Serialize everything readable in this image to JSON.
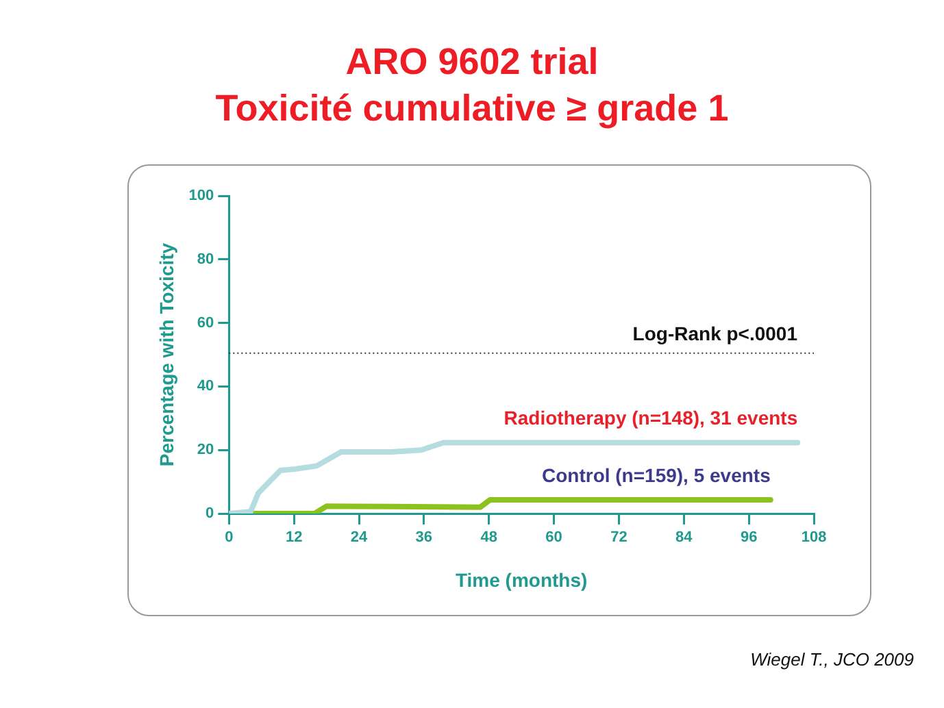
{
  "chart_data": {
    "type": "line",
    "title": "ARO 9602 trial\nToxicité cumulative ≥ grade 1",
    "xlabel": "Time (months)",
    "ylabel": "Percentage with Toxicity",
    "xlim": [
      0,
      108
    ],
    "xticks": [
      0,
      12,
      24,
      36,
      48,
      60,
      72,
      84,
      96,
      108
    ],
    "ylim": [
      0,
      100
    ],
    "yticks": [
      0,
      20,
      40,
      60,
      80,
      100
    ],
    "grid": false,
    "legend": false,
    "marker": "none",
    "line_style": "solid",
    "series": [
      {
        "name": "Radiotherapy (n=148), 31 events",
        "color": "#b5dde0",
        "x": [
          0,
          4,
          5.4,
          9.5,
          12.2,
          16.2,
          20.7,
          30,
          35.5,
          39.6,
          105
        ],
        "values": [
          0,
          0.6,
          6.4,
          13.6,
          14,
          15,
          19.4,
          19.4,
          20,
          22.3,
          22.3
        ]
      },
      {
        "name": "Control (n=159), 5 events",
        "color": "#8cc21e",
        "x": [
          4,
          15.8,
          18,
          30,
          46.4,
          48.2,
          100
        ],
        "values": [
          0,
          0,
          2.3,
          2.2,
          2,
          4.3,
          4.3
        ]
      }
    ],
    "ref_lines": [
      {
        "axis": "y",
        "value": 50.5,
        "label": "Log-Rank p<.0001",
        "line_style": "dotted",
        "color": "#333333"
      }
    ],
    "annotations": [
      "Wiegel T., JCO 2009"
    ]
  }
}
